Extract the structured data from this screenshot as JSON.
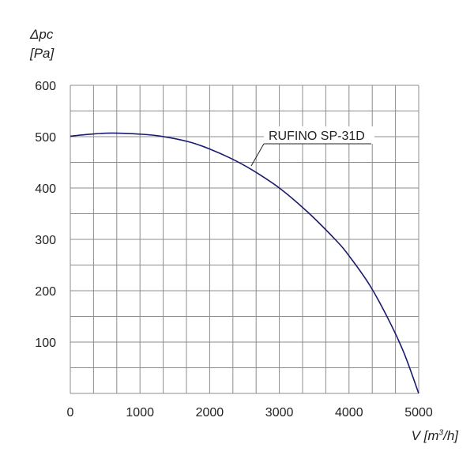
{
  "chart_data": {
    "type": "line",
    "ylabel_symbol": "Δpc",
    "ylabel_unit": "[Pa]",
    "xlabel_prefix": "V [m",
    "xlabel_sup": "3",
    "xlabel_suffix": "/h]",
    "xlim": [
      0,
      5000
    ],
    "ylim": [
      0,
      600
    ],
    "x_ticks": [
      "0",
      "1000",
      "2000",
      "3000",
      "4000",
      "5000"
    ],
    "y_ticks": [
      "100",
      "200",
      "300",
      "400",
      "500",
      "600"
    ],
    "grid": true,
    "series": [
      {
        "name": "RUFINO SP-31D",
        "color": "#1a1a6e",
        "x": [
          0,
          300,
          600,
          1000,
          1300,
          1700,
          2000,
          2300,
          2600,
          3000,
          3400,
          3800,
          4000,
          4300,
          4600,
          4800,
          5000
        ],
        "y": [
          501,
          505,
          507,
          505,
          501,
          490,
          476,
          458,
          436,
          400,
          354,
          300,
          268,
          210,
          135,
          75,
          0
        ]
      }
    ],
    "annotation": "RUFINO SP-31D"
  }
}
